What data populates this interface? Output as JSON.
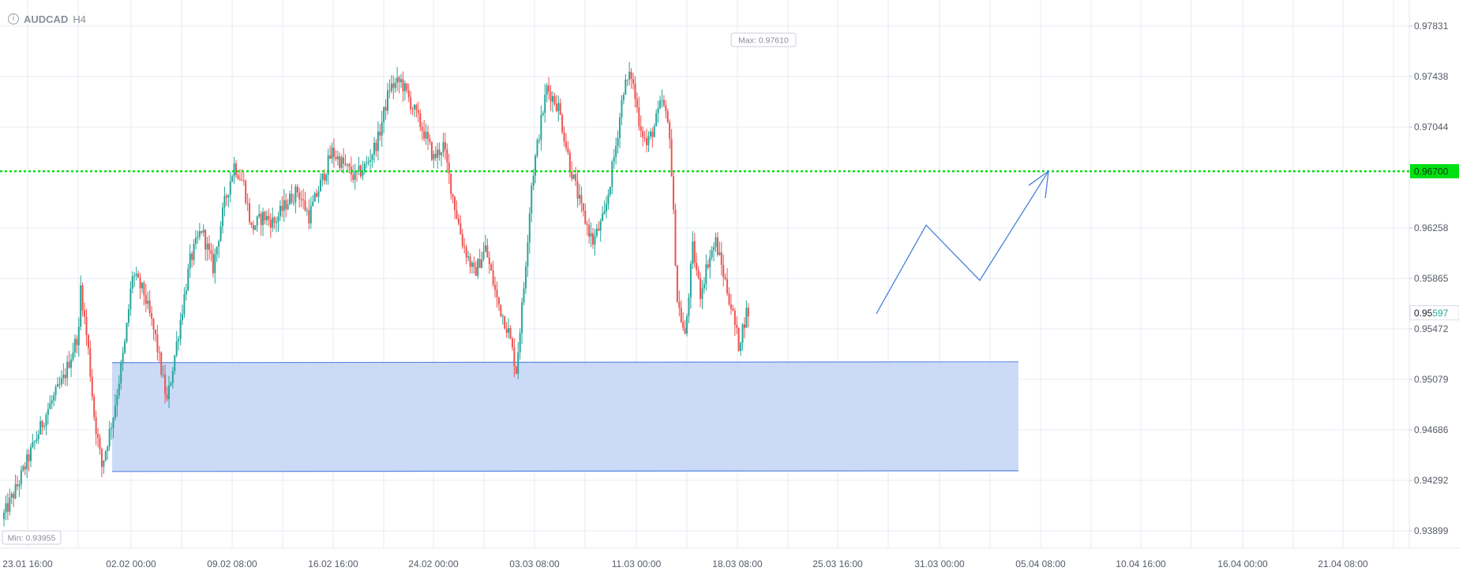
{
  "header": {
    "info_icon": "info-icon",
    "symbol": "AUDCAD",
    "timeframe": "H4"
  },
  "chart_data": {
    "type": "candlestick",
    "title": "",
    "xlabel": "",
    "ylabel": "",
    "ylim": [
      0.9372,
      0.9807
    ],
    "grid": true,
    "y_ticks": [
      "0.97831",
      "0.97438",
      "0.97044",
      "0.96258",
      "0.95865",
      "0.95472",
      "0.95079",
      "0.94686",
      "0.94292",
      "0.93899"
    ],
    "x_ticks": [
      "23.01 16:00",
      "02.02 00:00",
      "09.02 08:00",
      "16.02 16:00",
      "24.02 00:00",
      "03.03 08:00",
      "11.03 00:00",
      "18.03 08:00",
      "25.03 16:00",
      "31.03 00:00",
      "05.04 08:00",
      "10.04 16:00",
      "16.04 00:00",
      "21.04 08:00"
    ],
    "max_label": "Max: 0.97610",
    "min_label": "Min: 0.93955",
    "max_value": 0.9761,
    "min_value": 0.93955,
    "horizontal_level": {
      "value": 0.967,
      "label": "0.96700",
      "color": "#00e013",
      "style": "dotted"
    },
    "current_price": {
      "value": 0.95597,
      "label": "0.95597"
    },
    "demand_zone": {
      "from": "02.02 00:00",
      "to": "05.04 08:00",
      "top": 0.95209,
      "bottom": 0.94361,
      "color": "#c8d8f5"
    },
    "projection_path": [
      {
        "t": "27.03 08:00",
        "price": 0.9559
      },
      {
        "t": "31.03 00:00",
        "price": 0.9628
      },
      {
        "t": "03.04 08:00",
        "price": 0.9585
      },
      {
        "t": "05.04 08:00",
        "price": 0.967
      }
    ],
    "candles_ohlc": "data from 23.01 16:00 to 27.03 04:00 on the H4 timeframe",
    "colors": {
      "up": "#26a69a",
      "down": "#ef5350",
      "grid": "#e6ebf3",
      "axis_text": "#555b66"
    }
  }
}
